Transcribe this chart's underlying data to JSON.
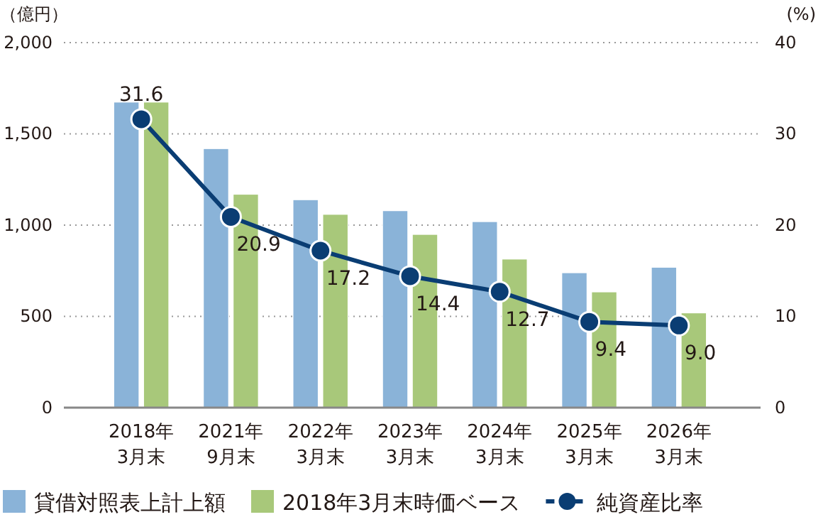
{
  "chart_data": {
    "type": "bar",
    "ylabel": "（億円）",
    "y2label": "(%)",
    "categories": [
      "2018年\n3月末",
      "2021年\n9月末",
      "2022年\n3月末",
      "2023年\n3月末",
      "2024年\n3月末",
      "2025年\n3月末",
      "2026年\n3月末"
    ],
    "series": [
      {
        "name": "貸借対照表上計上額",
        "color": "#8ab3d8",
        "values": [
          1675,
          1420,
          1140,
          1080,
          1020,
          740,
          770
        ]
      },
      {
        "name": "2018年3月末時価ベース",
        "color": "#a8c87a",
        "values": [
          1675,
          1170,
          1060,
          950,
          815,
          635,
          520
        ]
      },
      {
        "name": "純資産比率",
        "type": "line",
        "axis": "y2",
        "color": "#0a3d73",
        "values": [
          31.6,
          20.9,
          17.2,
          14.4,
          12.7,
          9.4,
          9.0
        ],
        "value_labels": [
          "31.6",
          "20.9",
          "17.2",
          "14.4",
          "12.7",
          "9.4",
          "9.0"
        ],
        "marker": "circle"
      }
    ],
    "ylim": [
      0,
      2000
    ],
    "yticks": [
      0,
      {
        "value": 500,
        "label": "500"
      },
      {
        "value": 1000,
        "label": "1,000"
      },
      {
        "value": 1500,
        "label": "1,500"
      },
      {
        "value": 2000,
        "label": "2,000"
      }
    ],
    "y2lim": [
      0,
      40
    ],
    "y2ticks": [
      0,
      10,
      20,
      30,
      40
    ],
    "grid": "y",
    "legend": "bottom"
  }
}
